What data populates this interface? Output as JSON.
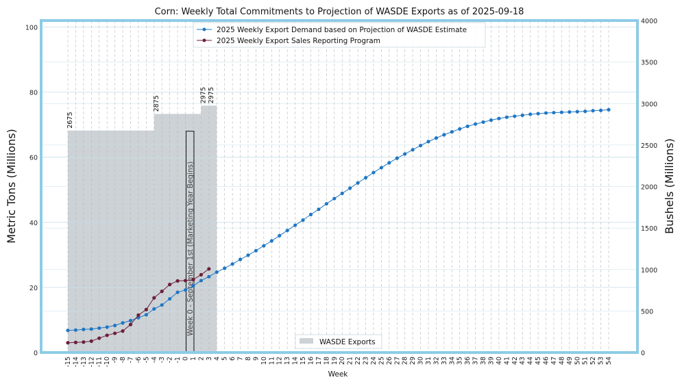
{
  "chart_data": {
    "type": "line",
    "title": "Corn: Weekly Total Commitments to Projection of WASDE Exports as of 2025-09-18",
    "xlabel": "Week",
    "ylabel": "Metric Tons (Millions)",
    "ylabel_right": "Bushels (Millions)",
    "ylim": [
      0,
      102
    ],
    "ylim_right": [
      0,
      4000
    ],
    "yticks": [
      0,
      20,
      40,
      60,
      80,
      100
    ],
    "yticks_right": [
      0,
      500,
      1000,
      1500,
      2000,
      2500,
      3000,
      3500,
      4000
    ],
    "x": [
      -15,
      -14,
      -13,
      -12,
      -11,
      -10,
      -9,
      -8,
      -7,
      -6,
      -5,
      -4,
      -3,
      -2,
      -1,
      0,
      1,
      2,
      3,
      4,
      5,
      6,
      7,
      8,
      9,
      10,
      11,
      12,
      13,
      14,
      15,
      16,
      17,
      18,
      19,
      20,
      21,
      22,
      23,
      24,
      25,
      26,
      27,
      28,
      29,
      30,
      31,
      32,
      33,
      34,
      35,
      36,
      37,
      38,
      39,
      40,
      41,
      42,
      43,
      44,
      45,
      46,
      47,
      48,
      49,
      50,
      51,
      52,
      53,
      54
    ],
    "series": [
      {
        "name": "2025 Weekly Export Demand based on Projection of WASDE Estimate",
        "color": "#1f77c4",
        "values": [
          6.8,
          6.9,
          7.1,
          7.2,
          7.5,
          7.8,
          8.3,
          9.1,
          9.8,
          10.7,
          11.6,
          13.4,
          14.6,
          16.5,
          18.5,
          19.2,
          20.5,
          22.1,
          23.3,
          24.7,
          25.9,
          27.2,
          28.6,
          29.9,
          31.3,
          32.8,
          34.3,
          35.9,
          37.5,
          39.1,
          40.7,
          42.4,
          44.0,
          45.7,
          47.3,
          48.9,
          50.5,
          52.1,
          53.7,
          55.3,
          56.8,
          58.3,
          59.7,
          61.0,
          62.3,
          63.6,
          64.8,
          65.9,
          66.9,
          67.8,
          68.7,
          69.5,
          70.2,
          70.8,
          71.4,
          71.9,
          72.3,
          72.6,
          72.9,
          73.2,
          73.4,
          73.6,
          73.7,
          73.8,
          73.9,
          74.0,
          74.1,
          74.3,
          74.4,
          74.6
        ]
      },
      {
        "name": "2025 Weekly Export Sales Reporting Program",
        "color": "#6b1f3a",
        "values": [
          3.0,
          3.1,
          3.2,
          3.5,
          4.4,
          5.3,
          5.9,
          6.6,
          8.6,
          11.5,
          13.2,
          16.8,
          18.8,
          20.9,
          22.0,
          22.1,
          22.4,
          23.9,
          25.7,
          null,
          null,
          null,
          null,
          null,
          null,
          null,
          null,
          null,
          null,
          null,
          null,
          null,
          null,
          null,
          null,
          null,
          null,
          null,
          null,
          null,
          null,
          null,
          null,
          null,
          null,
          null,
          null,
          null,
          null,
          null,
          null,
          null,
          null,
          null,
          null,
          null,
          null,
          null,
          null,
          null,
          null,
          null,
          null,
          null,
          null,
          null,
          null,
          null,
          null,
          null
        ]
      }
    ],
    "bars": {
      "name": "WASDE Exports",
      "color": "#cdd2d6",
      "axis": "right",
      "segments": [
        {
          "from_week": -15,
          "to_week": -4,
          "value": 2675,
          "label": "2675"
        },
        {
          "from_week": -4,
          "to_week": 2,
          "value": 2875,
          "label": "2875"
        },
        {
          "from_week": 2,
          "to_week": 3,
          "value": 2975,
          "label": "2975"
        },
        {
          "from_week": 3,
          "to_week": 4,
          "value": 2975,
          "label": "2975"
        }
      ]
    },
    "annotation": {
      "text": "Week 0 - September 1st (Marketing Year Begins)",
      "week_from": 0,
      "week_to": 1,
      "value_top": 68
    },
    "legend_position": "top-center",
    "bar_legend_position": "bottom-center",
    "grid": true,
    "colors": {
      "frame": "#8ecbe6",
      "grid": "#c6dfe8",
      "vgrid": "#b8b8b8"
    }
  }
}
